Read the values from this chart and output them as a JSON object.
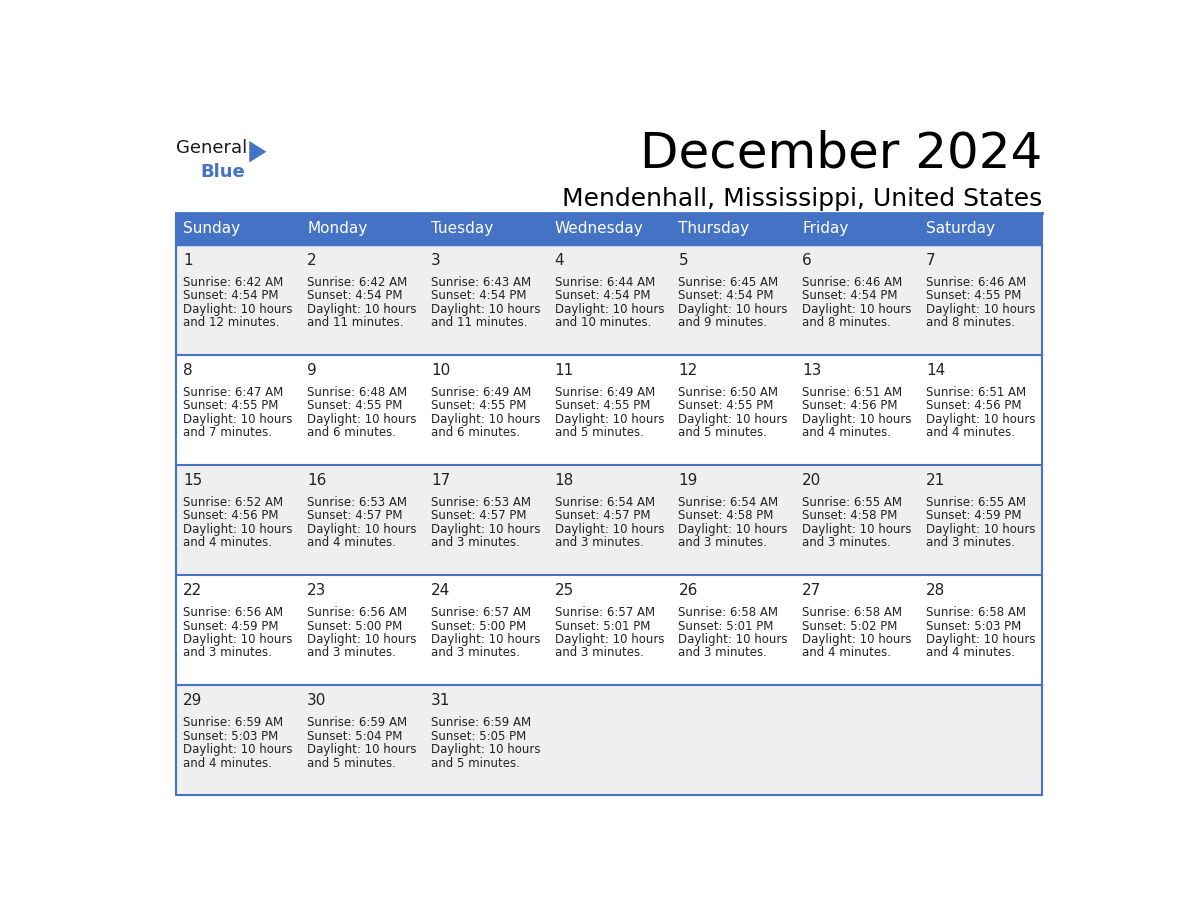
{
  "title": "December 2024",
  "subtitle": "Mendenhall, Mississippi, United States",
  "header_bg": "#4472C4",
  "header_text_color": "#FFFFFF",
  "cell_bg_odd": "#EFEFEF",
  "cell_bg_even": "#FFFFFF",
  "border_color": "#4472C4",
  "day_headers": [
    "Sunday",
    "Monday",
    "Tuesday",
    "Wednesday",
    "Thursday",
    "Friday",
    "Saturday"
  ],
  "days": [
    {
      "day": 1,
      "col": 0,
      "row": 0,
      "sunrise": "6:42 AM",
      "sunset": "4:54 PM",
      "daylight_hours": "10 hours",
      "daylight_mins": "and 12 minutes."
    },
    {
      "day": 2,
      "col": 1,
      "row": 0,
      "sunrise": "6:42 AM",
      "sunset": "4:54 PM",
      "daylight_hours": "10 hours",
      "daylight_mins": "and 11 minutes."
    },
    {
      "day": 3,
      "col": 2,
      "row": 0,
      "sunrise": "6:43 AM",
      "sunset": "4:54 PM",
      "daylight_hours": "10 hours",
      "daylight_mins": "and 11 minutes."
    },
    {
      "day": 4,
      "col": 3,
      "row": 0,
      "sunrise": "6:44 AM",
      "sunset": "4:54 PM",
      "daylight_hours": "10 hours",
      "daylight_mins": "and 10 minutes."
    },
    {
      "day": 5,
      "col": 4,
      "row": 0,
      "sunrise": "6:45 AM",
      "sunset": "4:54 PM",
      "daylight_hours": "10 hours",
      "daylight_mins": "and 9 minutes."
    },
    {
      "day": 6,
      "col": 5,
      "row": 0,
      "sunrise": "6:46 AM",
      "sunset": "4:54 PM",
      "daylight_hours": "10 hours",
      "daylight_mins": "and 8 minutes."
    },
    {
      "day": 7,
      "col": 6,
      "row": 0,
      "sunrise": "6:46 AM",
      "sunset": "4:55 PM",
      "daylight_hours": "10 hours",
      "daylight_mins": "and 8 minutes."
    },
    {
      "day": 8,
      "col": 0,
      "row": 1,
      "sunrise": "6:47 AM",
      "sunset": "4:55 PM",
      "daylight_hours": "10 hours",
      "daylight_mins": "and 7 minutes."
    },
    {
      "day": 9,
      "col": 1,
      "row": 1,
      "sunrise": "6:48 AM",
      "sunset": "4:55 PM",
      "daylight_hours": "10 hours",
      "daylight_mins": "and 6 minutes."
    },
    {
      "day": 10,
      "col": 2,
      "row": 1,
      "sunrise": "6:49 AM",
      "sunset": "4:55 PM",
      "daylight_hours": "10 hours",
      "daylight_mins": "and 6 minutes."
    },
    {
      "day": 11,
      "col": 3,
      "row": 1,
      "sunrise": "6:49 AM",
      "sunset": "4:55 PM",
      "daylight_hours": "10 hours",
      "daylight_mins": "and 5 minutes."
    },
    {
      "day": 12,
      "col": 4,
      "row": 1,
      "sunrise": "6:50 AM",
      "sunset": "4:55 PM",
      "daylight_hours": "10 hours",
      "daylight_mins": "and 5 minutes."
    },
    {
      "day": 13,
      "col": 5,
      "row": 1,
      "sunrise": "6:51 AM",
      "sunset": "4:56 PM",
      "daylight_hours": "10 hours",
      "daylight_mins": "and 4 minutes."
    },
    {
      "day": 14,
      "col": 6,
      "row": 1,
      "sunrise": "6:51 AM",
      "sunset": "4:56 PM",
      "daylight_hours": "10 hours",
      "daylight_mins": "and 4 minutes."
    },
    {
      "day": 15,
      "col": 0,
      "row": 2,
      "sunrise": "6:52 AM",
      "sunset": "4:56 PM",
      "daylight_hours": "10 hours",
      "daylight_mins": "and 4 minutes."
    },
    {
      "day": 16,
      "col": 1,
      "row": 2,
      "sunrise": "6:53 AM",
      "sunset": "4:57 PM",
      "daylight_hours": "10 hours",
      "daylight_mins": "and 4 minutes."
    },
    {
      "day": 17,
      "col": 2,
      "row": 2,
      "sunrise": "6:53 AM",
      "sunset": "4:57 PM",
      "daylight_hours": "10 hours",
      "daylight_mins": "and 3 minutes."
    },
    {
      "day": 18,
      "col": 3,
      "row": 2,
      "sunrise": "6:54 AM",
      "sunset": "4:57 PM",
      "daylight_hours": "10 hours",
      "daylight_mins": "and 3 minutes."
    },
    {
      "day": 19,
      "col": 4,
      "row": 2,
      "sunrise": "6:54 AM",
      "sunset": "4:58 PM",
      "daylight_hours": "10 hours",
      "daylight_mins": "and 3 minutes."
    },
    {
      "day": 20,
      "col": 5,
      "row": 2,
      "sunrise": "6:55 AM",
      "sunset": "4:58 PM",
      "daylight_hours": "10 hours",
      "daylight_mins": "and 3 minutes."
    },
    {
      "day": 21,
      "col": 6,
      "row": 2,
      "sunrise": "6:55 AM",
      "sunset": "4:59 PM",
      "daylight_hours": "10 hours",
      "daylight_mins": "and 3 minutes."
    },
    {
      "day": 22,
      "col": 0,
      "row": 3,
      "sunrise": "6:56 AM",
      "sunset": "4:59 PM",
      "daylight_hours": "10 hours",
      "daylight_mins": "and 3 minutes."
    },
    {
      "day": 23,
      "col": 1,
      "row": 3,
      "sunrise": "6:56 AM",
      "sunset": "5:00 PM",
      "daylight_hours": "10 hours",
      "daylight_mins": "and 3 minutes."
    },
    {
      "day": 24,
      "col": 2,
      "row": 3,
      "sunrise": "6:57 AM",
      "sunset": "5:00 PM",
      "daylight_hours": "10 hours",
      "daylight_mins": "and 3 minutes."
    },
    {
      "day": 25,
      "col": 3,
      "row": 3,
      "sunrise": "6:57 AM",
      "sunset": "5:01 PM",
      "daylight_hours": "10 hours",
      "daylight_mins": "and 3 minutes."
    },
    {
      "day": 26,
      "col": 4,
      "row": 3,
      "sunrise": "6:58 AM",
      "sunset": "5:01 PM",
      "daylight_hours": "10 hours",
      "daylight_mins": "and 3 minutes."
    },
    {
      "day": 27,
      "col": 5,
      "row": 3,
      "sunrise": "6:58 AM",
      "sunset": "5:02 PM",
      "daylight_hours": "10 hours",
      "daylight_mins": "and 4 minutes."
    },
    {
      "day": 28,
      "col": 6,
      "row": 3,
      "sunrise": "6:58 AM",
      "sunset": "5:03 PM",
      "daylight_hours": "10 hours",
      "daylight_mins": "and 4 minutes."
    },
    {
      "day": 29,
      "col": 0,
      "row": 4,
      "sunrise": "6:59 AM",
      "sunset": "5:03 PM",
      "daylight_hours": "10 hours",
      "daylight_mins": "and 4 minutes."
    },
    {
      "day": 30,
      "col": 1,
      "row": 4,
      "sunrise": "6:59 AM",
      "sunset": "5:04 PM",
      "daylight_hours": "10 hours",
      "daylight_mins": "and 5 minutes."
    },
    {
      "day": 31,
      "col": 2,
      "row": 4,
      "sunrise": "6:59 AM",
      "sunset": "5:05 PM",
      "daylight_hours": "10 hours",
      "daylight_mins": "and 5 minutes."
    }
  ],
  "num_rows": 5,
  "num_cols": 7,
  "logo_text_general": "General",
  "logo_text_blue": "Blue",
  "logo_triangle_color": "#4472C4",
  "cell_text_color": "#222222",
  "title_fontsize": 36,
  "subtitle_fontsize": 18,
  "day_num_fontsize": 11,
  "cell_fontsize": 8.5,
  "header_fontsize": 11
}
